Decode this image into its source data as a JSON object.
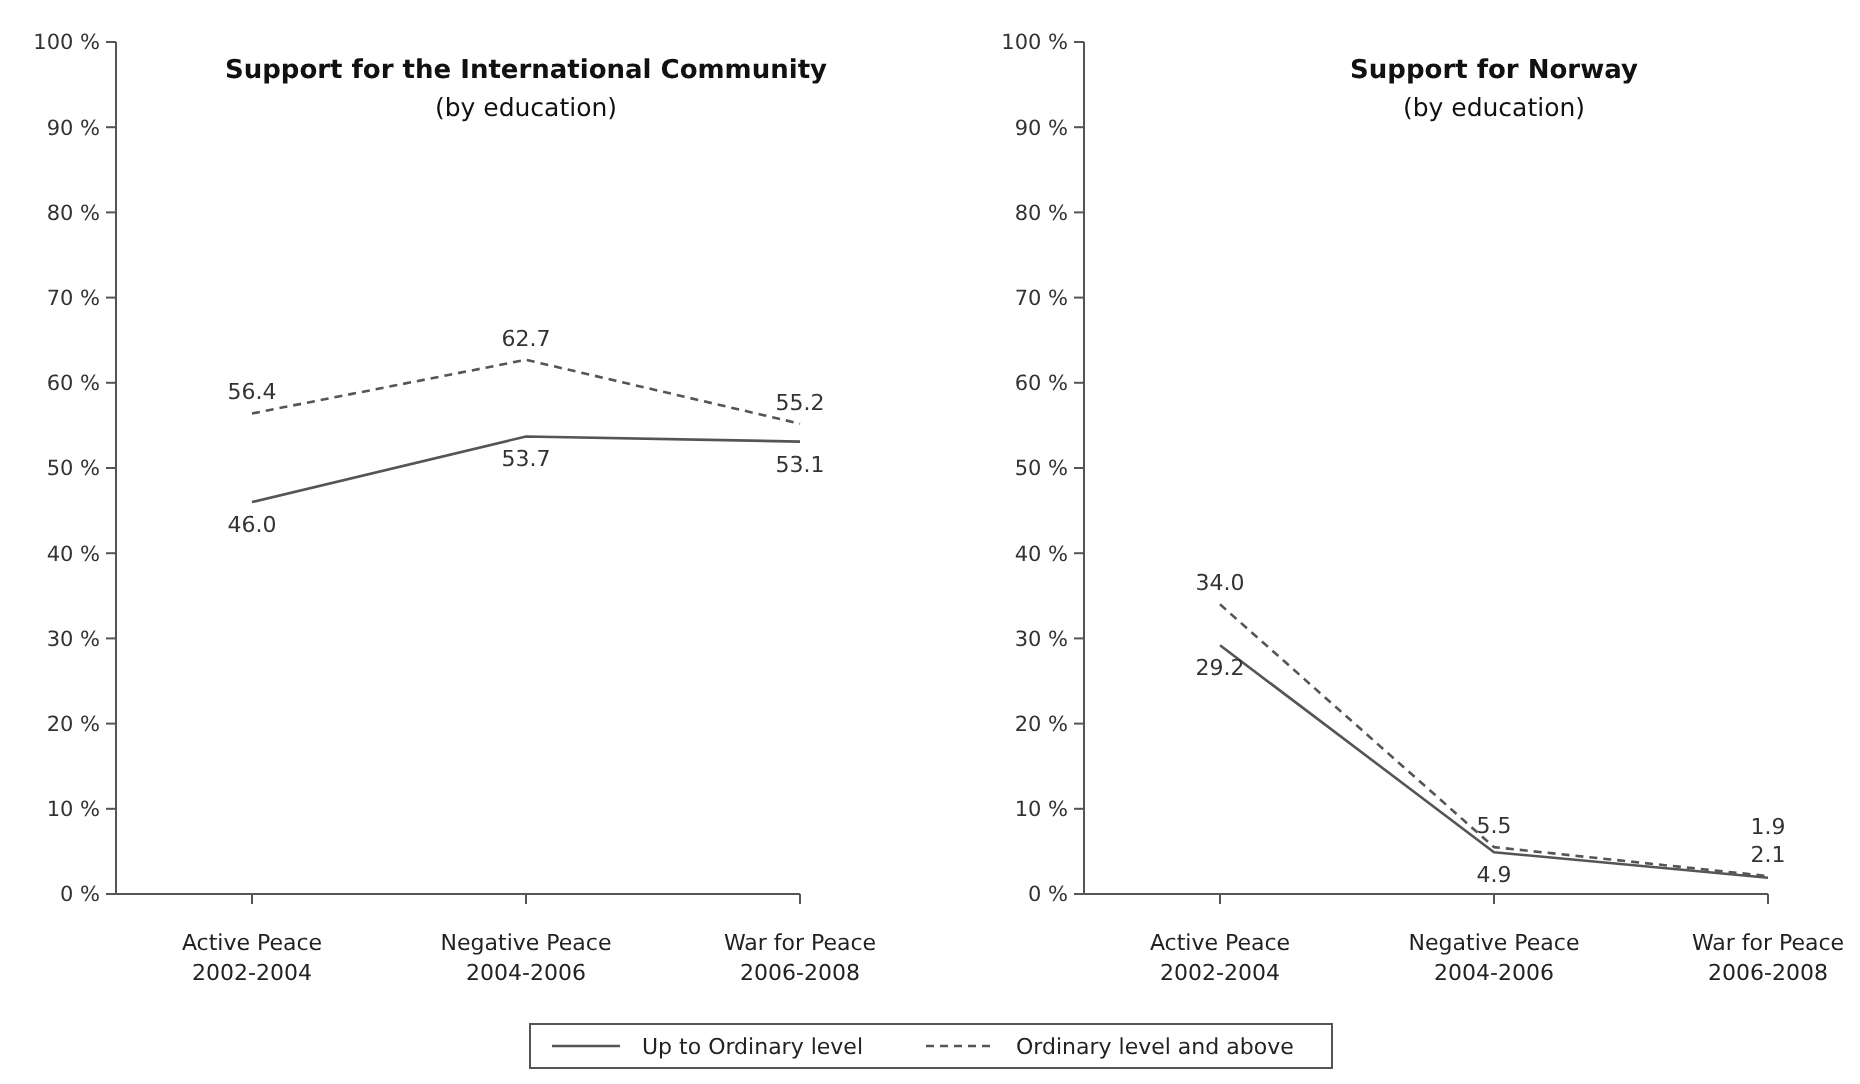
{
  "chart_data": [
    {
      "type": "line",
      "title": "Support for the International Community",
      "subtitle": "(by education)",
      "categories": [
        "Active Peace\n2002-2004",
        "Negative Peace\n2004-2006",
        "War for Peace\n2006-2008"
      ],
      "series": [
        {
          "name": "Up to Ordinary level",
          "color": "#555555",
          "line_style": "solid",
          "values": [
            46.0,
            53.7,
            53.1
          ],
          "value_labels": [
            "46.0",
            "53.7",
            "53.1"
          ]
        },
        {
          "name": "Ordinary level and above",
          "color": "#555555",
          "line_style": "dashed",
          "values": [
            56.4,
            62.7,
            55.2
          ],
          "value_labels": [
            "56.4",
            "62.7",
            "55.2"
          ]
        }
      ],
      "ylim": [
        0,
        100
      ],
      "yticks": [
        {
          "value": 0,
          "label": "0 %"
        },
        {
          "value": 10,
          "label": "10 %"
        },
        {
          "value": 20,
          "label": "20 %"
        },
        {
          "value": 30,
          "label": "30 %"
        },
        {
          "value": 40,
          "label": "40 %"
        },
        {
          "value": 50,
          "label": "50 %"
        },
        {
          "value": 60,
          "label": "60 %"
        },
        {
          "value": 70,
          "label": "70 %"
        },
        {
          "value": 80,
          "label": "80 %"
        },
        {
          "value": 90,
          "label": "90 %"
        },
        {
          "value": 100,
          "label": "100 %"
        }
      ],
      "grid": false,
      "marker": "none",
      "legend": "bottom"
    },
    {
      "type": "line",
      "title": "Support for Norway",
      "subtitle": "(by education)",
      "categories": [
        "Active Peace\n2002-2004",
        "Negative Peace\n2004-2006",
        "War for Peace\n2006-2008"
      ],
      "series": [
        {
          "color": "#555555",
          "line_style": "solid",
          "values": [
            29.2,
            4.9,
            1.9
          ],
          "value_labels": [
            "29.2",
            "4.9",
            "1.9"
          ]
        },
        {
          "color": "#555555",
          "line_style": "dashed",
          "values": [
            34.0,
            5.5,
            2.1
          ],
          "value_labels": [
            "34.0",
            "5.5",
            "2.1"
          ]
        }
      ],
      "ylim": [
        0,
        100
      ],
      "yticks": [
        {
          "value": 0,
          "label": "0 %"
        },
        {
          "value": 10,
          "label": "10 %"
        },
        {
          "value": 20,
          "label": "20 %"
        },
        {
          "value": 30,
          "label": "30 %"
        },
        {
          "value": 40,
          "label": "40 %"
        },
        {
          "value": 50,
          "label": "50 %"
        },
        {
          "value": 60,
          "label": "60 %"
        },
        {
          "value": 70,
          "label": "70 %"
        },
        {
          "value": 80,
          "label": "80 %"
        },
        {
          "value": 90,
          "label": "90 %"
        },
        {
          "value": 100,
          "label": "100 %"
        }
      ],
      "grid": false,
      "marker": "none",
      "legend": false
    }
  ]
}
